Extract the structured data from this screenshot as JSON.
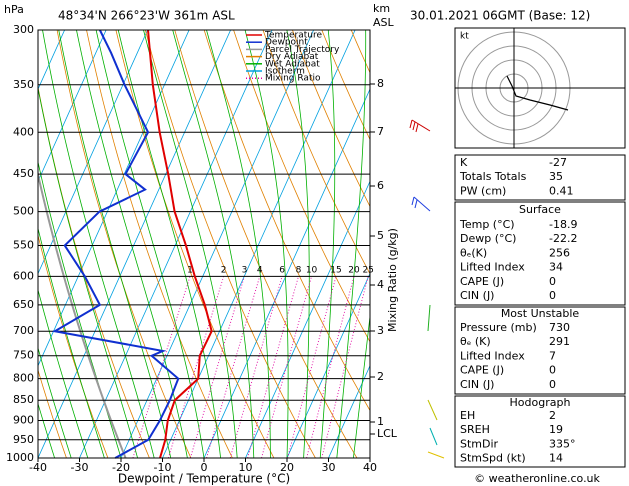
{
  "header": {
    "location": "48°34'N  266°23'W  361m  ASL",
    "date": "30.01.2021  06GMT  (Base: 12)",
    "credit": "© weatheronline.co.uk"
  },
  "chart_data": {
    "type": "skewt",
    "y_label": "hPa",
    "x_label": "Dewpoint / Temperature (°C)",
    "xlim": [
      -40,
      40
    ],
    "xticks": [
      -40,
      -30,
      -20,
      -10,
      0,
      10,
      20,
      30,
      40
    ],
    "ylim": [
      1000,
      300
    ],
    "yticks": [
      1000,
      950,
      900,
      850,
      800,
      750,
      700,
      650,
      600,
      550,
      500,
      450,
      400,
      350,
      300
    ],
    "log_y": true,
    "height_axis": {
      "top": "km",
      "bottom": "ASL",
      "labels": [
        "8",
        "7",
        "6",
        "5",
        "4",
        "3",
        "2",
        "1",
        "LCL"
      ]
    },
    "mixing_ratio": {
      "label": "Mixing Ratio (g/kg)",
      "values": [
        1,
        2,
        3,
        4,
        6,
        8,
        10,
        15,
        20,
        25
      ],
      "color": "#e000a0"
    },
    "series": [
      {
        "name": "Temperature",
        "color": "#e00000",
        "pressure": [
          1000,
          950,
          900,
          850,
          800,
          750,
          700,
          650,
          600,
          550,
          500,
          450,
          400,
          350,
          300
        ],
        "values": [
          -10.6,
          -11.3,
          -12.8,
          -13.3,
          -10,
          -12.1,
          -11.9,
          -16.4,
          -21.9,
          -27.4,
          -33.8,
          -39.4,
          -46,
          -52.8,
          -59.9
        ]
      },
      {
        "name": "Dewpoint",
        "color": "#1030d0",
        "pressure": [
          1000,
          950,
          900,
          850,
          800,
          750,
          740,
          700,
          650,
          600,
          550,
          500,
          470,
          450,
          400,
          350,
          320,
          300
        ],
        "values": [
          -21.4,
          -15.4,
          -14.7,
          -14.5,
          -14.8,
          -23.7,
          -21.5,
          -49.7,
          -41.7,
          -48.4,
          -56.6,
          -51.9,
          -43.3,
          -49.7,
          -48.8,
          -59.6,
          -66.3,
          -71.5
        ]
      }
    ],
    "reference_lines": [
      {
        "name": "Parcel Trajectory",
        "color": "#999999"
      },
      {
        "name": "Dry Adiabat",
        "color": "#e08000"
      },
      {
        "name": "Wet Adiabat",
        "color": "#00b000"
      },
      {
        "name": "Isotherm",
        "color": "#00a0e0"
      },
      {
        "name": "Mixing Ratio",
        "color": "#e000a0"
      }
    ]
  },
  "indices": {
    "rows": [
      [
        "K",
        -27
      ],
      [
        "Totals Totals",
        35
      ],
      [
        "PW (cm)",
        0.41
      ]
    ]
  },
  "surface": {
    "title": "Surface",
    "rows": [
      [
        "Temp (°C)",
        -18.9
      ],
      [
        "Dewp (°C)",
        -22.2
      ],
      [
        "θₑ(K)",
        256
      ],
      [
        "Lifted Index",
        34
      ],
      [
        "CAPE (J)",
        0
      ],
      [
        "CIN (J)",
        0
      ]
    ]
  },
  "most_unstable": {
    "title": "Most Unstable",
    "rows": [
      [
        "Pressure (mb)",
        730
      ],
      [
        "θₑ (K)",
        291
      ],
      [
        "Lifted Index",
        7
      ],
      [
        "CAPE (J)",
        0
      ],
      [
        "CIN (J)",
        0
      ]
    ]
  },
  "hodograph": {
    "unit": "kt",
    "title": "Hodograph",
    "rows": [
      [
        "EH",
        2
      ],
      [
        "SREH",
        19
      ],
      [
        "StmDir",
        "335°"
      ],
      [
        "StmSpd (kt)",
        14
      ]
    ]
  }
}
